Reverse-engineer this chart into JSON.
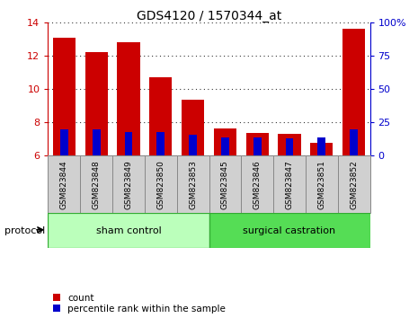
{
  "title": "GDS4120 / 1570344_at",
  "samples": [
    "GSM823844",
    "GSM823848",
    "GSM823849",
    "GSM823850",
    "GSM823853",
    "GSM823845",
    "GSM823846",
    "GSM823847",
    "GSM823851",
    "GSM823852"
  ],
  "count_values": [
    13.1,
    12.2,
    12.8,
    10.7,
    9.35,
    7.65,
    7.35,
    7.3,
    6.8,
    13.6
  ],
  "percentile_values": [
    20.0,
    20.0,
    18.0,
    18.0,
    16.0,
    14.0,
    14.0,
    13.0,
    14.0,
    20.0
  ],
  "ylim_left": [
    6,
    14
  ],
  "ylim_right": [
    0,
    100
  ],
  "yticks_left": [
    6,
    8,
    10,
    12,
    14
  ],
  "yticks_right": [
    0,
    25,
    50,
    75,
    100
  ],
  "bar_width": 0.7,
  "count_color": "#cc0000",
  "percentile_color": "#0000cc",
  "group1_label": "sham control",
  "group2_label": "surgical castration",
  "group1_color": "#bbffbb",
  "group2_color": "#55dd55",
  "protocol_label": "protocol",
  "legend_count": "count",
  "legend_percentile": "percentile rank within the sample",
  "left_axis_color": "#cc0000",
  "right_axis_color": "#0000cc",
  "tick_bg_color": "#d0d0d0",
  "tick_border_color": "#888888"
}
